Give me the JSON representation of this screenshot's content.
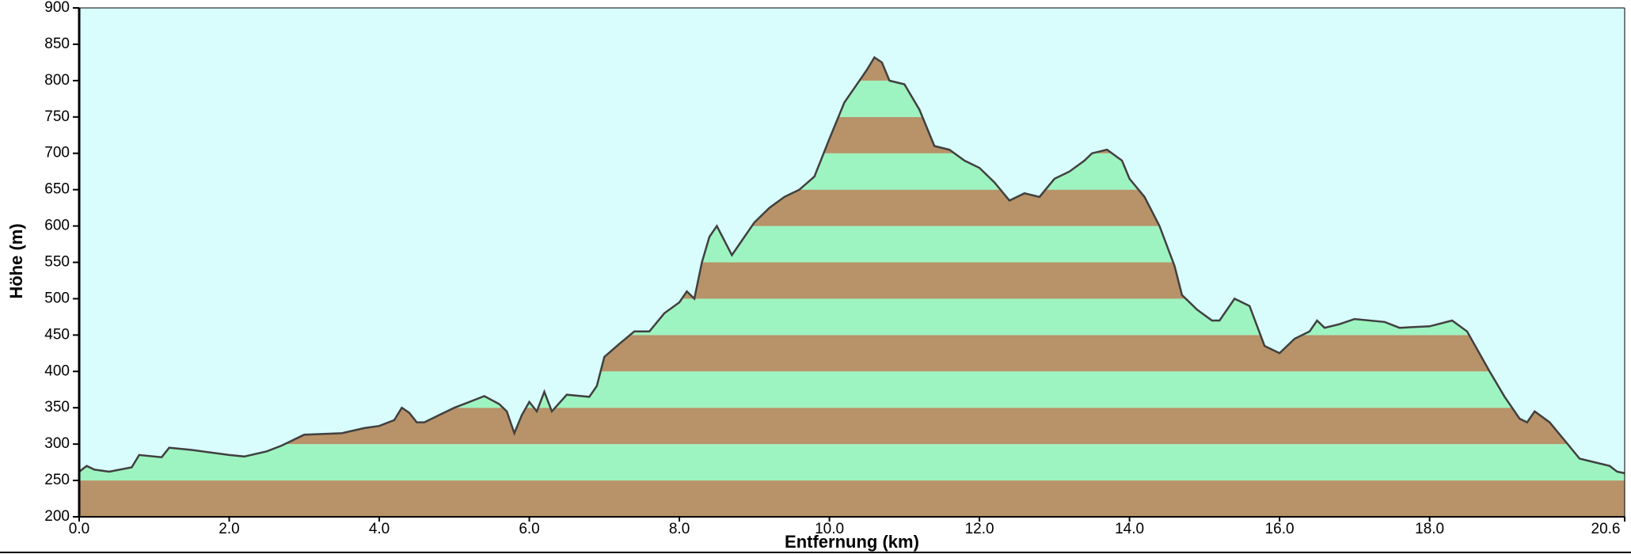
{
  "chart_data": {
    "type": "elevation-area",
    "xlabel": "Entfernung   (km)",
    "ylabel": "Höhe (m)",
    "xlim": [
      0,
      20.6
    ],
    "ylim": [
      200,
      900
    ],
    "xticks": [
      {
        "value": 0,
        "label": "0.0"
      },
      {
        "value": 2,
        "label": "2.0"
      },
      {
        "value": 4,
        "label": "4.0"
      },
      {
        "value": 6,
        "label": "6.0"
      },
      {
        "value": 8,
        "label": "8.0"
      },
      {
        "value": 10,
        "label": "10.0"
      },
      {
        "value": 12,
        "label": "12.0"
      },
      {
        "value": 14,
        "label": "14.0"
      },
      {
        "value": 16,
        "label": "16.0"
      },
      {
        "value": 18,
        "label": "18.0"
      },
      {
        "value": 20.6,
        "label": "20.6"
      }
    ],
    "yticks": [
      200,
      250,
      300,
      350,
      400,
      450,
      500,
      550,
      600,
      650,
      700,
      750,
      800,
      850,
      900
    ],
    "background": "#d9fdfd",
    "band_colors": [
      "#b89268",
      "#9ef4c0"
    ],
    "line_color": "#404040",
    "x": [
      0.0,
      0.1,
      0.2,
      0.4,
      0.7,
      0.8,
      1.1,
      1.2,
      1.5,
      2.0,
      2.2,
      2.5,
      2.7,
      3.0,
      3.5,
      3.8,
      4.0,
      4.2,
      4.3,
      4.4,
      4.5,
      4.6,
      4.8,
      5.0,
      5.2,
      5.4,
      5.6,
      5.7,
      5.8,
      5.9,
      6.0,
      6.1,
      6.2,
      6.3,
      6.5,
      6.8,
      6.9,
      7.0,
      7.2,
      7.4,
      7.6,
      7.8,
      8.0,
      8.1,
      8.2,
      8.3,
      8.4,
      8.5,
      8.6,
      8.7,
      8.8,
      9.0,
      9.2,
      9.4,
      9.6,
      9.8,
      10.0,
      10.2,
      10.4,
      10.5,
      10.6,
      10.7,
      10.8,
      11.0,
      11.2,
      11.4,
      11.6,
      11.8,
      12.0,
      12.2,
      12.4,
      12.6,
      12.8,
      13.0,
      13.2,
      13.4,
      13.5,
      13.7,
      13.9,
      14.0,
      14.2,
      14.4,
      14.6,
      14.7,
      14.9,
      15.1,
      15.2,
      15.4,
      15.6,
      15.8,
      16.0,
      16.2,
      16.4,
      16.5,
      16.6,
      16.8,
      17.0,
      17.4,
      17.6,
      18.0,
      18.3,
      18.5,
      18.8,
      19.0,
      19.2,
      19.3,
      19.4,
      19.6,
      19.8,
      20.0,
      20.2,
      20.4,
      20.5,
      20.6
    ],
    "values": [
      262,
      270,
      265,
      262,
      268,
      285,
      282,
      295,
      292,
      285,
      283,
      290,
      298,
      313,
      315,
      322,
      325,
      333,
      350,
      343,
      330,
      330,
      340,
      350,
      358,
      366,
      355,
      345,
      315,
      340,
      358,
      345,
      372,
      345,
      368,
      365,
      380,
      420,
      438,
      455,
      455,
      480,
      495,
      510,
      500,
      550,
      585,
      600,
      580,
      560,
      575,
      605,
      625,
      640,
      650,
      668,
      720,
      770,
      800,
      815,
      832,
      825,
      800,
      795,
      760,
      710,
      705,
      690,
      680,
      660,
      635,
      645,
      640,
      665,
      675,
      690,
      700,
      705,
      690,
      665,
      640,
      600,
      545,
      505,
      485,
      470,
      470,
      500,
      490,
      435,
      425,
      445,
      455,
      470,
      460,
      465,
      472,
      468,
      460,
      462,
      470,
      455,
      400,
      365,
      335,
      330,
      345,
      330,
      305,
      280,
      275,
      270,
      262,
      260
    ]
  }
}
